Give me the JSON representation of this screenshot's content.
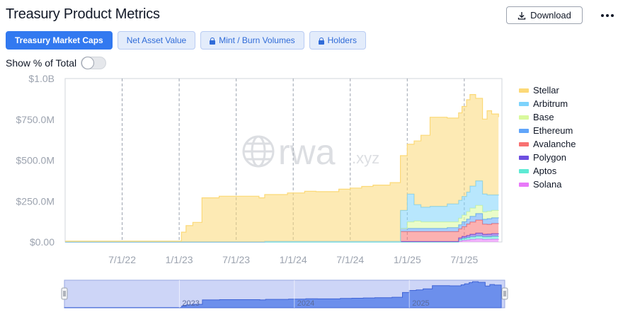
{
  "header": {
    "title": "Treasury Product Metrics",
    "download_label": "Download",
    "download_icon": "download-icon",
    "more_icon": "more-options-icon"
  },
  "tabs": [
    {
      "label": "Treasury Market Caps",
      "active": true,
      "locked": false
    },
    {
      "label": "Net Asset Value",
      "active": false,
      "locked": false
    },
    {
      "label": "Mint / Burn Volumes",
      "active": false,
      "locked": true
    },
    {
      "label": "Holders",
      "active": false,
      "locked": true
    }
  ],
  "toggle": {
    "label": "Show % of Total",
    "on": false
  },
  "watermark": {
    "word": "rwa",
    "suffix": ".xyz"
  },
  "chart_data": {
    "type": "area",
    "stacked": true,
    "y_ticks": [
      "$0.00",
      "$250.0M",
      "$500.0M",
      "$750.0M",
      "$1.0B"
    ],
    "ylim": [
      0,
      1000
    ],
    "x_ticks": [
      "7/1/22",
      "1/1/23",
      "7/1/23",
      "1/1/24",
      "7/1/24",
      "1/1/25",
      "7/1/25"
    ],
    "x_tick_values": [
      2022.5,
      2023.0,
      2023.5,
      2024.0,
      2024.5,
      2025.0,
      2025.5
    ],
    "xlim": [
      2022.0,
      2025.83
    ],
    "grid": "x-dashed",
    "legend_position": "right",
    "x": [
      2022.0,
      2022.5,
      2022.9,
      2022.96,
      2023.02,
      2023.06,
      2023.12,
      2023.2,
      2023.35,
      2023.5,
      2023.7,
      2023.75,
      2023.95,
      2024.1,
      2024.2,
      2024.4,
      2024.5,
      2024.6,
      2024.7,
      2024.85,
      2024.94,
      2025.0,
      2025.06,
      2025.12,
      2025.2,
      2025.35,
      2025.45,
      2025.48,
      2025.52,
      2025.55,
      2025.6,
      2025.66,
      2025.7,
      2025.74,
      2025.8
    ],
    "series": [
      {
        "name": "Solana",
        "color": "#e879f9",
        "values": [
          0,
          0,
          0,
          0,
          0,
          0,
          0,
          0,
          0,
          0,
          0,
          0,
          0,
          0,
          0,
          0,
          0,
          0,
          0,
          0,
          0,
          0,
          0,
          0,
          0,
          0,
          5,
          10,
          12,
          15,
          18,
          15,
          16,
          17,
          18
        ]
      },
      {
        "name": "Aptos",
        "color": "#5eead4",
        "values": [
          0,
          0,
          0,
          0,
          0,
          0,
          0,
          0,
          0,
          0,
          0,
          0,
          0,
          0,
          0,
          0,
          0,
          0,
          0,
          0,
          0,
          0,
          0,
          0,
          0,
          0,
          10,
          12,
          14,
          16,
          18,
          16,
          16,
          17,
          17
        ]
      },
      {
        "name": "Polygon",
        "color": "#6d4fe0",
        "values": [
          0,
          0,
          0,
          0,
          0,
          0,
          0,
          0,
          0,
          0,
          0,
          3,
          3,
          3,
          3,
          3,
          3,
          3,
          3,
          3,
          3,
          3,
          3,
          3,
          3,
          3,
          10,
          12,
          14,
          16,
          18,
          16,
          16,
          17,
          17
        ]
      },
      {
        "name": "Avalanche",
        "color": "#f87171",
        "values": [
          0,
          0,
          0,
          0,
          0,
          0,
          0,
          0,
          0,
          0,
          0,
          0,
          0,
          0,
          0,
          0,
          0,
          0,
          0,
          0,
          60,
          60,
          60,
          60,
          60,
          60,
          55,
          60,
          70,
          75,
          80,
          62,
          60,
          62,
          62
        ]
      },
      {
        "name": "Ethereum",
        "color": "#60a5fa",
        "values": [
          0,
          0,
          0,
          0,
          0,
          0,
          0,
          0,
          0,
          0,
          0,
          0,
          0,
          0,
          0,
          0,
          0,
          0,
          0,
          0,
          20,
          20,
          20,
          20,
          20,
          25,
          25,
          30,
          30,
          35,
          40,
          30,
          35,
          35,
          35
        ]
      },
      {
        "name": "Base",
        "color": "#d9f99d",
        "values": [
          0,
          0,
          0,
          0,
          0,
          0,
          0,
          0,
          0,
          0,
          0,
          0,
          0,
          0,
          0,
          0,
          0,
          0,
          0,
          0,
          0,
          40,
          45,
          40,
          40,
          35,
          40,
          40,
          45,
          50,
          50,
          45,
          45,
          45,
          45
        ]
      },
      {
        "name": "Arbitrum",
        "color": "#7dd3fc",
        "values": [
          0,
          0,
          0,
          0,
          0,
          0,
          0,
          0,
          0,
          0,
          0,
          0,
          0,
          0,
          0,
          0,
          0,
          0,
          0,
          0,
          110,
          170,
          100,
          90,
          95,
          110,
          110,
          115,
          120,
          135,
          150,
          110,
          100,
          95,
          95
        ]
      },
      {
        "name": "Stellar",
        "color": "#fcd977",
        "values": [
          5,
          5,
          5,
          5,
          60,
          100,
          120,
          270,
          280,
          280,
          270,
          287,
          297,
          307,
          305,
          320,
          327,
          337,
          345,
          360,
          335,
          305,
          390,
          440,
          545,
          525,
          535,
          550,
          565,
          560,
          505,
          458,
          515,
          495,
          475
        ]
      }
    ]
  },
  "navigator": {
    "labels": [
      "2023",
      "2024",
      "2025"
    ],
    "label_values": [
      2023.0,
      2024.0,
      2025.0
    ]
  }
}
